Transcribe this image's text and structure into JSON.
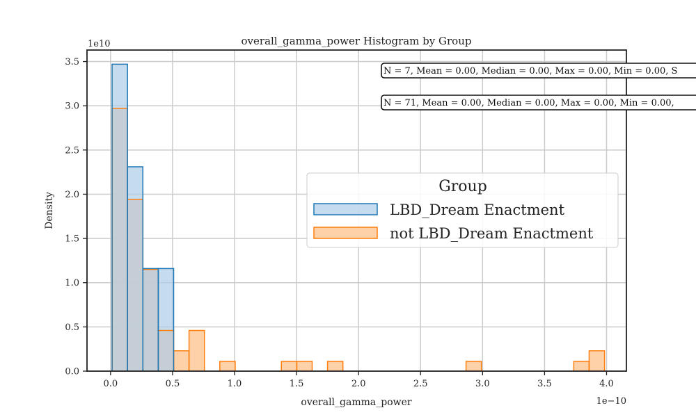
{
  "chart_data": {
    "type": "histogram",
    "title": "overall_gamma_power Histogram by Group",
    "xlabel": "overall_gamma_power",
    "ylabel": "Density",
    "x_offset_text": "1e−10",
    "y_offset_text": "1e10",
    "x_scale": 1e-10,
    "y_scale": 10000000000.0,
    "xlim": [
      -0.19,
      4.16
    ],
    "ylim": [
      0,
      3.63
    ],
    "x_ticks": [
      0.0,
      0.5,
      1.0,
      1.5,
      2.0,
      2.5,
      3.0,
      3.5,
      4.0
    ],
    "x_tick_labels": [
      "0.0",
      "0.5",
      "1.0",
      "1.5",
      "2.0",
      "2.5",
      "3.0",
      "3.5",
      "4.0"
    ],
    "y_ticks": [
      0.0,
      0.5,
      1.0,
      1.5,
      2.0,
      2.5,
      3.0,
      3.5
    ],
    "y_tick_labels": [
      "0.0",
      "0.5",
      "1.0",
      "1.5",
      "2.0",
      "2.5",
      "3.0",
      "3.5"
    ],
    "grid": true,
    "legend": {
      "title": "Group",
      "placement": "center-right",
      "entries": [
        "LBD_Dream Enactment",
        "not LBD_Dream Enactment"
      ]
    },
    "series": [
      {
        "name": "LBD_Dream Enactment",
        "edge_color": "#1f77b4",
        "fill_color": "#aecde8",
        "bins": [
          {
            "x0": 0.0124,
            "x1": 0.1365,
            "density": 3.47
          },
          {
            "x0": 0.1365,
            "x1": 0.2606,
            "density": 2.31
          },
          {
            "x0": 0.2606,
            "x1": 0.3847,
            "density": 1.16
          },
          {
            "x0": 0.3847,
            "x1": 0.5088,
            "density": 1.16
          }
        ]
      },
      {
        "name": "not LBD_Dream Enactment",
        "edge_color": "#ff7f0e",
        "fill_color": "#ffc999",
        "bins": [
          {
            "x0": 0.0124,
            "x1": 0.1365,
            "density": 2.97
          },
          {
            "x0": 0.1365,
            "x1": 0.2606,
            "density": 1.94
          },
          {
            "x0": 0.2606,
            "x1": 0.3847,
            "density": 1.15
          },
          {
            "x0": 0.3847,
            "x1": 0.5088,
            "density": 0.46
          },
          {
            "x0": 0.5088,
            "x1": 0.6329,
            "density": 0.23
          },
          {
            "x0": 0.6329,
            "x1": 0.757,
            "density": 0.46
          },
          {
            "x0": 0.8811,
            "x1": 1.0052,
            "density": 0.11
          },
          {
            "x0": 1.3775,
            "x1": 1.5016,
            "density": 0.11
          },
          {
            "x0": 1.5016,
            "x1": 1.6257,
            "density": 0.11
          },
          {
            "x0": 1.7498,
            "x1": 1.8739,
            "density": 0.11
          },
          {
            "x0": 2.8667,
            "x1": 2.9908,
            "density": 0.11
          },
          {
            "x0": 3.7354,
            "x1": 3.8595,
            "density": 0.11
          },
          {
            "x0": 3.8595,
            "x1": 3.9836,
            "density": 0.23
          }
        ]
      }
    ],
    "annotations": [
      {
        "text": "N = 7, Mean = 0.00, Median = 0.00, Max = 0.00, Min = 0.00, S",
        "series": "LBD_Dream Enactment"
      },
      {
        "text": "N = 71, Mean = 0.00, Median = 0.00, Max = 0.00, Min = 0.00,",
        "series": "not LBD_Dream Enactment"
      }
    ]
  }
}
